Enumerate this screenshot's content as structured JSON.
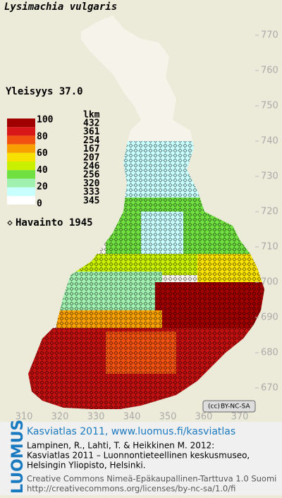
{
  "header": {
    "title": "Lysimachia vulgaris",
    "frequency": "Yleisyys  37.0"
  },
  "legend": {
    "count_header": "lkm",
    "scale": [
      100,
      80,
      60,
      40,
      20,
      0
    ],
    "classes": [
      {
        "color": "#a00000",
        "count": 432
      },
      {
        "color": "#d81818",
        "count": 361
      },
      {
        "color": "#f05010",
        "count": 254
      },
      {
        "color": "#f8a000",
        "count": 167
      },
      {
        "color": "#f8e000",
        "count": 207
      },
      {
        "color": "#c8f000",
        "count": 246
      },
      {
        "color": "#70e040",
        "count": 256
      },
      {
        "color": "#a0f0b0",
        "count": 320
      },
      {
        "color": "#c8ffff",
        "count": 333
      },
      {
        "color": "#ffffff",
        "count": 345
      }
    ],
    "observation": "Havainto 1945"
  },
  "axes": {
    "yticks": [
      770,
      760,
      750,
      740,
      730,
      720,
      710,
      700,
      690,
      680,
      670
    ],
    "xticks": [
      310,
      320,
      330,
      340,
      350,
      360,
      370
    ]
  },
  "license_badge": "BY-NC-SA",
  "footer": {
    "logo": "LUOMUS",
    "headline": "Kasviatlas 2011, www.luomus.fi/kasviatlas",
    "citation": [
      "Lampinen, R., Lahti, T. & Heikkinen M. 2012:",
      "Kasviatlas 2011 – Luonnontieteellinen keskusmuseo,",
      "Helsingin Yliopisto, Helsinki."
    ],
    "license": "Creative Commons Nimeä-Epäkaupallinen-Tarttuva 1.0 Suomi",
    "url": "http://creativecommons.org/licenses/by-nc-sa/1.0/fi"
  }
}
